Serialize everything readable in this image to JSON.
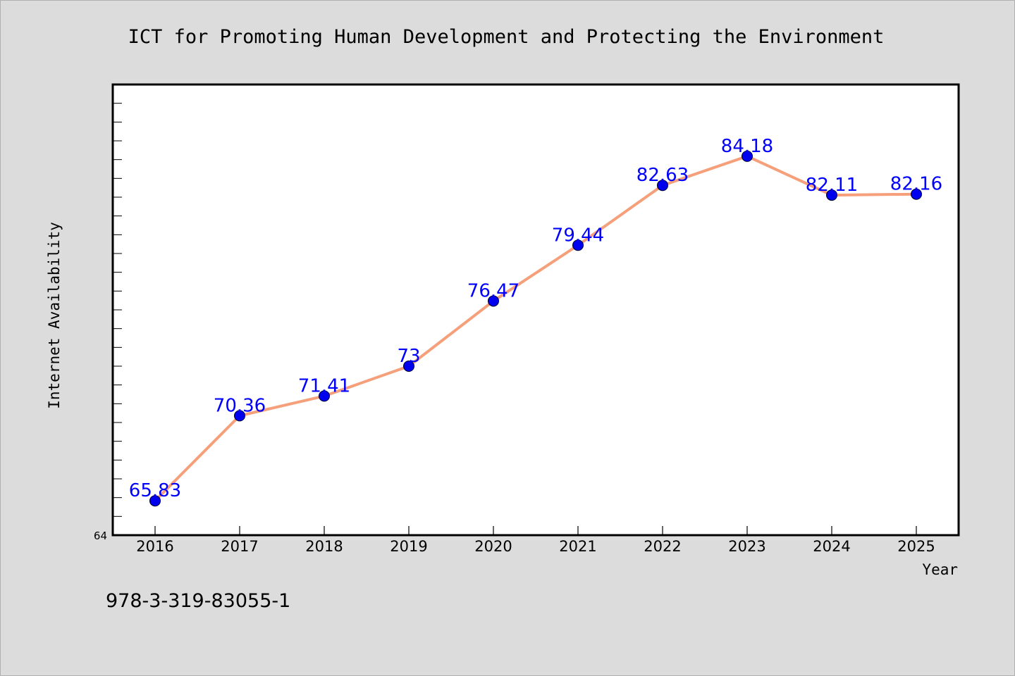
{
  "chart_data": {
    "type": "line",
    "title": "ICT for Promoting Human Development and Protecting the Environment",
    "xlabel": "Year",
    "ylabel": "Internet Availability",
    "categories": [
      "2016",
      "2017",
      "2018",
      "2019",
      "2020",
      "2021",
      "2022",
      "2023",
      "2024",
      "2025"
    ],
    "series": [
      {
        "values": [
          65.83,
          70.36,
          71.41,
          73,
          76.47,
          79.44,
          82.63,
          84.18,
          82.11,
          82.16
        ],
        "labels": [
          "65.83",
          "70.36",
          "71.41",
          "73",
          "76.47",
          "79.44",
          "82.63",
          "84.18",
          "82.11",
          "82.16"
        ],
        "line_color": "#f5a07a",
        "marker_color": "#0000ee"
      }
    ],
    "ylim": [
      64,
      88
    ],
    "y_tick_labels": [
      "64"
    ],
    "grid": false,
    "legend": "none",
    "plot_background": "#ffffff",
    "figure_background": "#dcdcdc",
    "label_color": "#0000ff"
  },
  "annotation": "978-3-319-83055-1"
}
